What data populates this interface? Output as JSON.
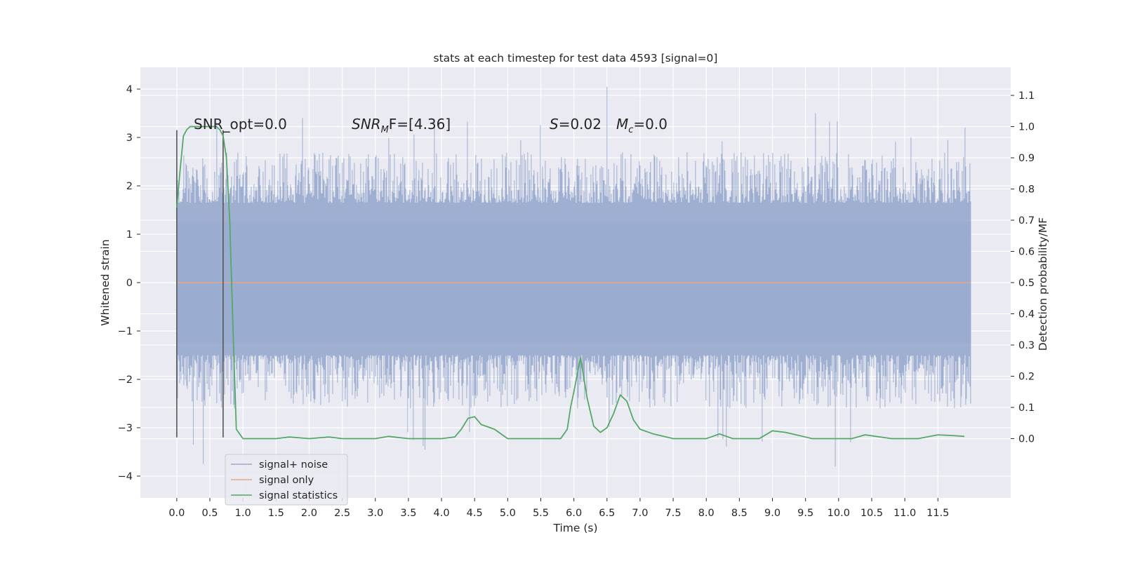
{
  "chart_data": {
    "type": "line",
    "title": "stats at each timestep for test data 4593 [signal=0]",
    "xlabel": "Time (s)",
    "ylabel": "Whitened strain",
    "y2label": "Detection probability/MF",
    "xlim": [
      -0.55,
      12.6
    ],
    "ylim": [
      -4.45,
      4.45
    ],
    "y2lim": [
      -0.19,
      1.19
    ],
    "x_ticks": [
      "0.0",
      "0.5",
      "1.0",
      "1.5",
      "2.0",
      "2.5",
      "3.0",
      "3.5",
      "4.0",
      "4.5",
      "5.0",
      "5.5",
      "6.0",
      "6.5",
      "7.0",
      "7.5",
      "8.0",
      "8.5",
      "9.0",
      "9.5",
      "10.0",
      "10.5",
      "11.0",
      "11.5"
    ],
    "y_ticks": [
      "4",
      "3",
      "2",
      "1",
      "0",
      "−1",
      "−2",
      "−3",
      "−4"
    ],
    "y2_ticks": [
      "1.1",
      "1.0",
      "0.9",
      "0.8",
      "0.7",
      "0.6",
      "0.5",
      "0.4",
      "0.3",
      "0.2",
      "0.1",
      "0.0"
    ],
    "grid": true,
    "legend_position": "bottom-left",
    "annotations": {
      "snr_opt": "SNR_opt=0.0",
      "snr_mf_sym": "SNR",
      "snr_mf_sub": "M",
      "snr_mf_rest": "F=[4.36]",
      "s_sym": "S",
      "s_rest": "=0.02",
      "mc_sym": "M",
      "mc_sub": "c",
      "mc_rest": "=0.0"
    },
    "vlines": [
      0.0,
      0.7
    ],
    "series": [
      {
        "name": "signal+ noise",
        "color": "#9aaccf",
        "noise_band": {
          "t_start": 0.0,
          "t_end": 12.0,
          "core_amplitude": 1.25,
          "typical_extreme": 2.0,
          "peak_max": 4.05,
          "peak_min": -3.8
        }
      },
      {
        "name": "signal only",
        "color": "#e8a48c",
        "x": [
          0.0,
          12.0
        ],
        "y": [
          0.0,
          0.0
        ]
      },
      {
        "name": "signal statistics",
        "color": "#55a868",
        "x": [
          0.0,
          0.05,
          0.1,
          0.15,
          0.2,
          0.3,
          0.4,
          0.5,
          0.55,
          0.6,
          0.65,
          0.7,
          0.75,
          0.8,
          0.85,
          0.9,
          1.0,
          1.5,
          1.7,
          2.0,
          2.3,
          2.5,
          3.0,
          3.2,
          3.5,
          4.0,
          4.2,
          4.3,
          4.4,
          4.5,
          4.6,
          4.8,
          5.0,
          5.5,
          5.8,
          5.9,
          5.95,
          6.0,
          6.1,
          6.2,
          6.3,
          6.4,
          6.5,
          6.6,
          6.7,
          6.8,
          6.9,
          7.0,
          7.2,
          7.5,
          8.0,
          8.2,
          8.4,
          8.8,
          9.0,
          9.2,
          9.4,
          9.6,
          10.0,
          10.2,
          10.4,
          10.8,
          11.2,
          11.5,
          11.7,
          11.9
        ],
        "y": [
          0.74,
          0.86,
          0.97,
          0.99,
          1.0,
          1.0,
          1.0,
          1.0,
          1.0,
          1.0,
          0.99,
          0.97,
          0.9,
          0.7,
          0.35,
          0.03,
          0.0,
          0.0,
          0.005,
          0.0,
          0.005,
          0.0,
          0.0,
          0.007,
          0.0,
          0.0,
          0.005,
          0.03,
          0.065,
          0.07,
          0.045,
          0.03,
          0.0,
          0.0,
          0.0,
          0.03,
          0.1,
          0.15,
          0.26,
          0.13,
          0.04,
          0.02,
          0.035,
          0.08,
          0.14,
          0.12,
          0.06,
          0.03,
          0.015,
          0.0,
          0.0,
          0.015,
          0.0,
          0.0,
          0.025,
          0.02,
          0.01,
          0.0,
          0.0,
          0.0,
          0.012,
          0.0,
          0.0,
          0.012,
          0.01,
          0.007
        ]
      }
    ]
  }
}
